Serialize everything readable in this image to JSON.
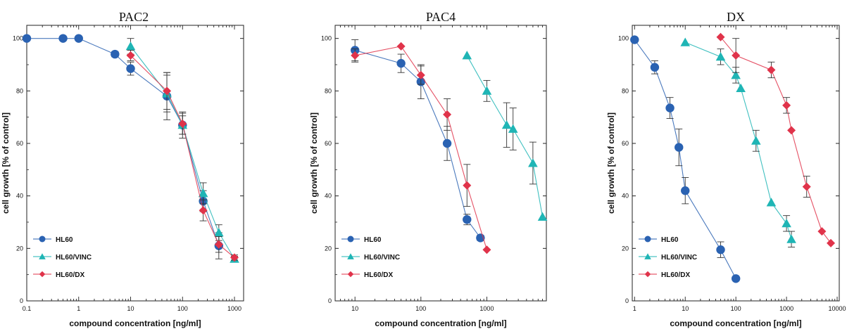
{
  "chart_data": [
    {
      "type": "line",
      "title": "PAC2",
      "xlabel": "compound concentration [ng/ml]",
      "ylabel": "cell growth [% of control]",
      "xscale": "log",
      "xlim": [
        0.1,
        1500
      ],
      "ylim": [
        0,
        105
      ],
      "xticks": [
        0.1,
        1,
        10,
        100,
        1000
      ],
      "xtick_labels": [
        "0.1",
        "1",
        "10",
        "100",
        "1000"
      ],
      "yticks": [
        0,
        20,
        40,
        60,
        80,
        100
      ],
      "legend_placement": "bottom-left",
      "series": [
        {
          "name": "HL60",
          "color": "#2a62b2",
          "marker": "circle",
          "x": [
            0.1,
            0.5,
            1,
            5,
            10,
            50,
            100,
            250,
            500
          ],
          "y": [
            100,
            100,
            100,
            94,
            88.5,
            78,
            67,
            38,
            21
          ],
          "err": [
            0,
            0,
            0,
            1,
            2.5,
            9,
            3.5,
            4,
            5
          ]
        },
        {
          "name": "HL60/VINC",
          "color": "#1fb5b5",
          "marker": "triangle",
          "x": [
            10,
            50,
            100,
            250,
            500,
            1000
          ],
          "y": [
            97,
            79,
            67,
            41,
            26,
            16
          ],
          "err": [
            3,
            7,
            5,
            4,
            3,
            1
          ]
        },
        {
          "name": "HL60/DX",
          "color": "#e0334a",
          "marker": "diamond",
          "x": [
            10,
            50,
            100,
            250,
            500,
            1000
          ],
          "y": [
            93.5,
            80,
            67.5,
            34.5,
            21.5,
            16.5
          ],
          "err": [
            2,
            7,
            4,
            4,
            3,
            1
          ]
        }
      ]
    },
    {
      "type": "line",
      "title": "PAC4",
      "xlabel": "compound concentration [ng/ml]",
      "ylabel": "cell growth [% of control]",
      "xscale": "log",
      "xlim": [
        5,
        8000
      ],
      "ylim": [
        0,
        105
      ],
      "xticks": [
        10,
        100,
        1000
      ],
      "xtick_labels": [
        "10",
        "100",
        "1000"
      ],
      "yticks": [
        0,
        20,
        40,
        60,
        80,
        100
      ],
      "legend_placement": "bottom-left",
      "series": [
        {
          "name": "HL60",
          "color": "#2a62b2",
          "marker": "circle",
          "x": [
            10,
            50,
            100,
            250,
            500,
            800
          ],
          "y": [
            95.5,
            90.5,
            83.5,
            60,
            31,
            24
          ],
          "err": [
            4,
            3.5,
            6.5,
            6.5,
            2,
            1
          ]
        },
        {
          "name": "HL60/VINC",
          "color": "#1fb5b5",
          "marker": "triangle",
          "x": [
            500,
            1000,
            2000,
            2500,
            5000,
            7000
          ],
          "y": [
            93.5,
            80,
            67,
            65.5,
            52.5,
            32
          ],
          "err": [
            0,
            4,
            8.5,
            8,
            8,
            0
          ]
        },
        {
          "name": "HL60/DX",
          "color": "#e0334a",
          "marker": "diamond",
          "x": [
            10,
            50,
            100,
            250,
            500,
            1000
          ],
          "y": [
            93.5,
            97,
            86,
            71,
            44,
            19.5
          ],
          "err": [
            2.5,
            0,
            3.5,
            6,
            8,
            0
          ]
        }
      ]
    },
    {
      "type": "line",
      "title": "DX",
      "xlabel": "compound concentration [ng/ml]",
      "ylabel": "cell growth [% of control]",
      "xscale": "log",
      "xlim": [
        0.9,
        11000
      ],
      "ylim": [
        0,
        105
      ],
      "xticks": [
        1,
        10,
        100,
        1000,
        10000
      ],
      "xtick_labels": [
        "1",
        "10",
        "100",
        "1000",
        "10000"
      ],
      "yticks": [
        0,
        20,
        40,
        60,
        80,
        100
      ],
      "legend_placement": "bottom-left",
      "series": [
        {
          "name": "HL60",
          "color": "#2a62b2",
          "marker": "circle",
          "x": [
            1,
            2.5,
            5,
            7.5,
            10,
            50,
            100
          ],
          "y": [
            99.5,
            89,
            73.5,
            58.5,
            42,
            19.5,
            8.5
          ],
          "err": [
            0,
            2.5,
            4,
            7,
            5,
            3,
            0
          ]
        },
        {
          "name": "HL60/VINC",
          "color": "#1fb5b5",
          "marker": "triangle",
          "x": [
            10,
            50,
            100,
            125,
            250,
            500,
            1000,
            1250
          ],
          "y": [
            98.5,
            93,
            86,
            81,
            61,
            37.5,
            29.5,
            23.5
          ],
          "err": [
            0,
            3,
            3,
            0,
            4,
            0,
            3,
            3
          ]
        },
        {
          "name": "HL60/DX",
          "color": "#e0334a",
          "marker": "diamond",
          "x": [
            50,
            100,
            500,
            1000,
            1250,
            2500,
            5000,
            7500
          ],
          "y": [
            100.5,
            93.5,
            88,
            74.5,
            65,
            43.5,
            26.5,
            22
          ],
          "err": [
            0,
            6.5,
            3,
            3,
            0,
            4,
            0,
            0
          ]
        }
      ]
    }
  ]
}
